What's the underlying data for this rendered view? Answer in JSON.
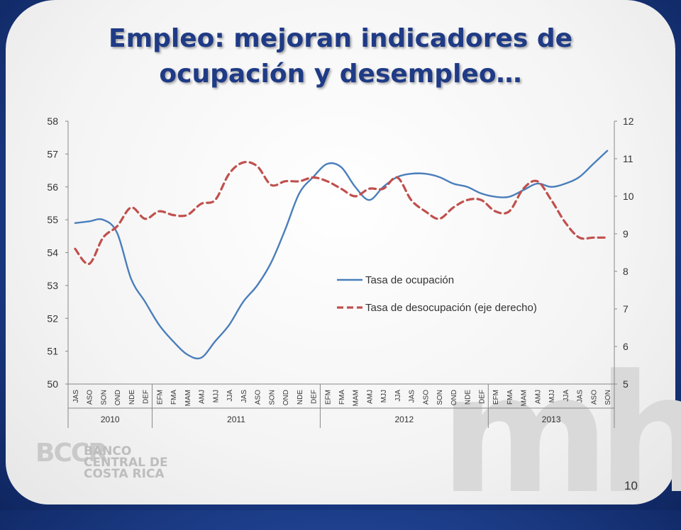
{
  "slide": {
    "title_line1": "Empleo: mejoran indicadores de",
    "title_line2": "ocupación y desempleo…",
    "page_number": "10",
    "watermark": "mh",
    "logo": {
      "monogram": "BCCR",
      "line1": "BANCO",
      "line2": "CENTRAL DE",
      "line3": "COSTA RICA"
    }
  },
  "chart_data": {
    "type": "line",
    "categories": [
      "JAS",
      "ASO",
      "SON",
      "OND",
      "NDE",
      "DEF",
      "EFM",
      "FMA",
      "MAM",
      "AMJ",
      "MJJ",
      "JJA",
      "JAS",
      "ASO",
      "SON",
      "OND",
      "NDE",
      "DEF",
      "EFM",
      "FMA",
      "MAM",
      "AMJ",
      "MJJ",
      "JJA",
      "JAS",
      "ASO",
      "SON",
      "OND",
      "NDE",
      "DEF",
      "EFM",
      "FMA",
      "MAM",
      "AMJ",
      "MJJ",
      "JJA",
      "JAS",
      "ASO",
      "SON"
    ],
    "year_groups": [
      {
        "label": "2010",
        "start": 0,
        "end": 5
      },
      {
        "label": "2011",
        "start": 6,
        "end": 17
      },
      {
        "label": "2012",
        "start": 18,
        "end": 29
      },
      {
        "label": "2013",
        "start": 30,
        "end": 38
      }
    ],
    "series": [
      {
        "name": "Tasa de ocupación",
        "axis": "left",
        "color": "#4a7ebb",
        "style": "solid",
        "values": [
          54.9,
          54.95,
          55.0,
          54.6,
          53.2,
          52.5,
          51.8,
          51.3,
          50.9,
          50.8,
          51.3,
          51.8,
          52.5,
          53.0,
          53.7,
          54.7,
          55.8,
          56.3,
          56.7,
          56.6,
          56.0,
          55.6,
          56.0,
          56.3,
          56.4,
          56.4,
          56.3,
          56.1,
          56.0,
          55.8,
          55.7,
          55.7,
          55.9,
          56.1,
          56.0,
          56.1,
          56.3,
          56.7,
          57.1
        ]
      },
      {
        "name": "Tasa de desocupación (eje derecho)",
        "axis": "right",
        "color": "#c0504d",
        "style": "dashed",
        "values": [
          8.6,
          8.2,
          8.9,
          9.2,
          9.7,
          9.4,
          9.6,
          9.5,
          9.5,
          9.8,
          9.9,
          10.6,
          10.9,
          10.8,
          10.3,
          10.4,
          10.4,
          10.5,
          10.4,
          10.2,
          10.0,
          10.2,
          10.2,
          10.5,
          9.9,
          9.6,
          9.4,
          9.7,
          9.9,
          9.9,
          9.6,
          9.6,
          10.2,
          10.4,
          9.9,
          9.3,
          8.9,
          8.9,
          8.9
        ]
      }
    ],
    "left_axis": {
      "min": 50,
      "max": 58,
      "ticks": [
        50,
        51,
        52,
        53,
        54,
        55,
        56,
        57,
        58
      ]
    },
    "right_axis": {
      "min": 5,
      "max": 12,
      "ticks": [
        5,
        6,
        7,
        8,
        9,
        10,
        11,
        12
      ]
    },
    "legend_position": "center-right",
    "grid": false
  }
}
